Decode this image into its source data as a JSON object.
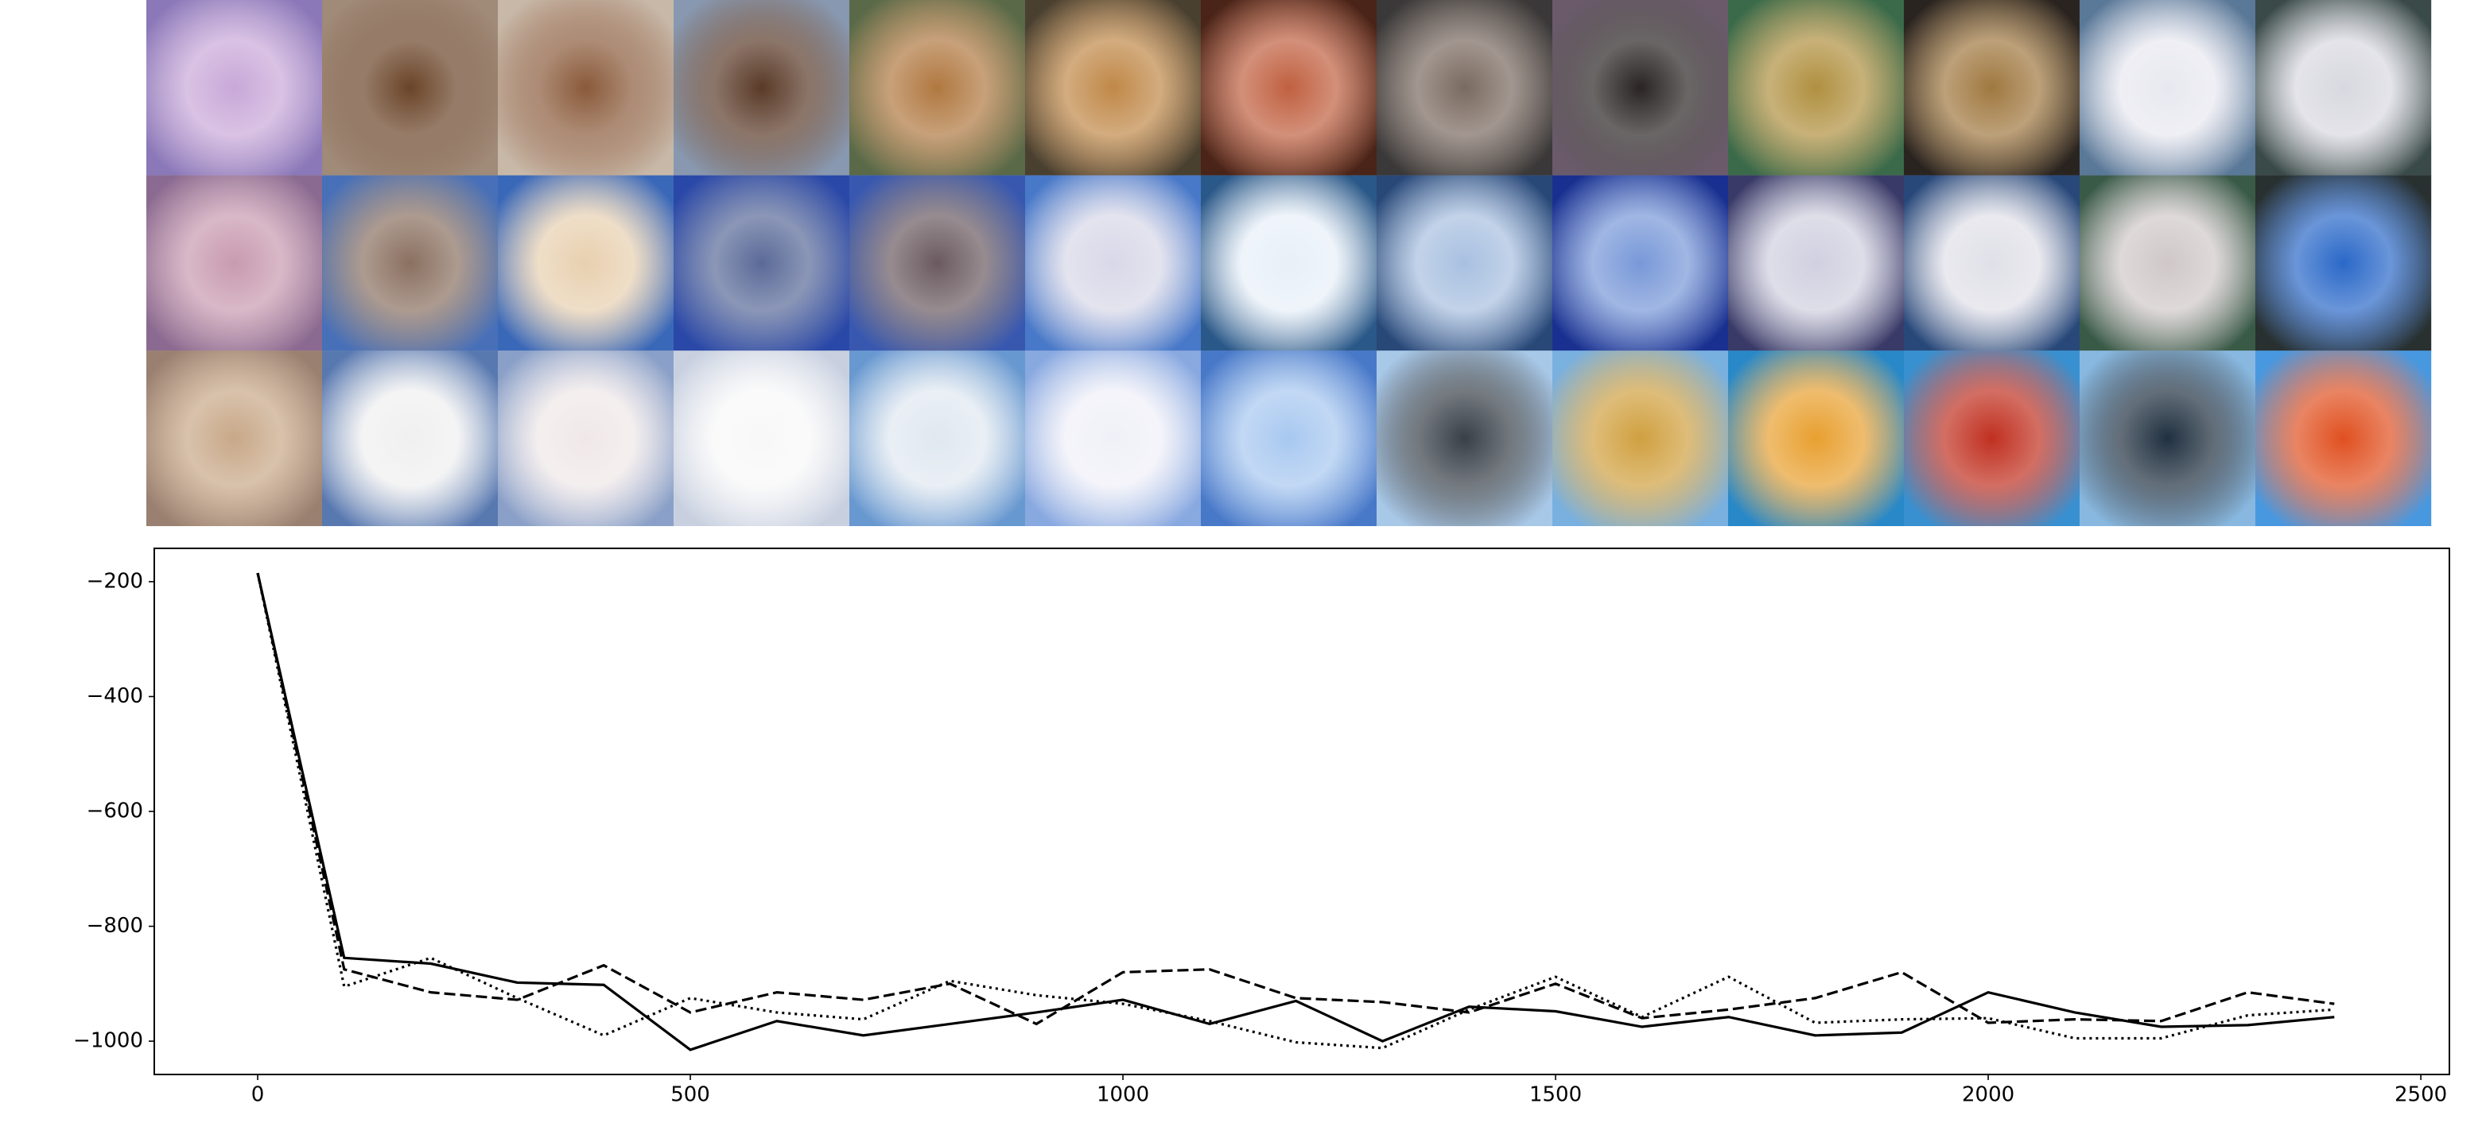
{
  "chart_data": {
    "type": "line",
    "x": [
      0,
      100,
      200,
      300,
      400,
      500,
      600,
      700,
      800,
      900,
      1000,
      1100,
      1200,
      1300,
      1400,
      1500,
      1600,
      1700,
      1800,
      1900,
      2000,
      2100,
      2200,
      2300,
      2400
    ],
    "series": [
      {
        "color": "#000000",
        "dash": "solid",
        "values": [
          -185,
          -855,
          -865,
          -898,
          -902,
          -1015,
          -965,
          -990,
          -970,
          -950,
          -928,
          -970,
          -930,
          -1000,
          -940,
          -948,
          -975,
          -958,
          -990,
          -985,
          -915,
          -950,
          -975,
          -972,
          -958
        ]
      },
      {
        "color": "#000000",
        "dash": "dashed",
        "values": [
          -185,
          -875,
          -915,
          -928,
          -868,
          -950,
          -915,
          -928,
          -900,
          -970,
          -880,
          -875,
          -925,
          -932,
          -950,
          -900,
          -960,
          -945,
          -925,
          -880,
          -968,
          -962,
          -965,
          -915,
          -935
        ]
      },
      {
        "color": "#000000",
        "dash": "dotted",
        "values": [
          -185,
          -905,
          -855,
          -925,
          -990,
          -925,
          -950,
          -962,
          -895,
          -920,
          -935,
          -965,
          -1002,
          -1012,
          -945,
          -888,
          -958,
          -888,
          -968,
          -962,
          -960,
          -995,
          -995,
          -955,
          -945
        ]
      }
    ],
    "xlim": [
      -119.5,
      2533
    ],
    "ylim": [
      -1058,
      -142
    ],
    "xticks": [
      0,
      500,
      1000,
      1500,
      2000,
      2500
    ],
    "yticks": [
      {
        "value": -200,
        "label": "−200"
      },
      {
        "value": -400,
        "label": "−400"
      },
      {
        "value": -600,
        "label": "−600"
      },
      {
        "value": -800,
        "label": "−800"
      },
      {
        "value": -1000,
        "label": "−1000"
      }
    ],
    "grid": false
  }
}
